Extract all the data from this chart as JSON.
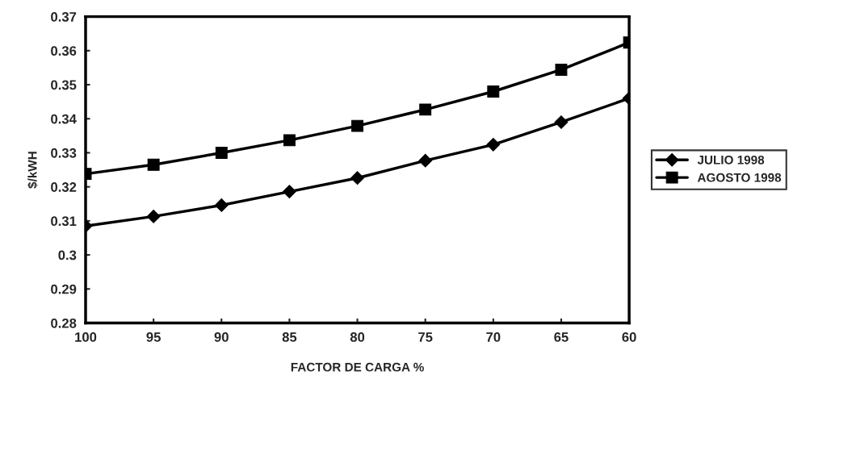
{
  "chart_data": {
    "type": "line",
    "xlabel": "FACTOR DE CARGA %",
    "ylabel": "$/kWH",
    "x": [
      100,
      95,
      90,
      85,
      80,
      75,
      70,
      65,
      60
    ],
    "series": [
      {
        "name": "JULIO 1998",
        "color": "#000000",
        "marker": "diamond",
        "values": [
          0.3085,
          0.3113,
          0.3146,
          0.3186,
          0.3226,
          0.3277,
          0.3324,
          0.339,
          0.346
        ]
      },
      {
        "name": "AGOSTO 1998",
        "color": "#000000",
        "marker": "square",
        "values": [
          0.3238,
          0.3265,
          0.33,
          0.3337,
          0.3379,
          0.3427,
          0.348,
          0.3544,
          0.3624
        ]
      }
    ],
    "xlim": [
      100,
      60
    ],
    "xticks": [
      100,
      95,
      90,
      85,
      80,
      75,
      70,
      65,
      60
    ],
    "ylim": [
      0.28,
      0.37
    ],
    "yticks": [
      0.28,
      0.29,
      0.3,
      0.31,
      0.32,
      0.33,
      0.34,
      0.35,
      0.36,
      0.37
    ],
    "grid": false,
    "legend": "right",
    "line_style": "solid"
  }
}
